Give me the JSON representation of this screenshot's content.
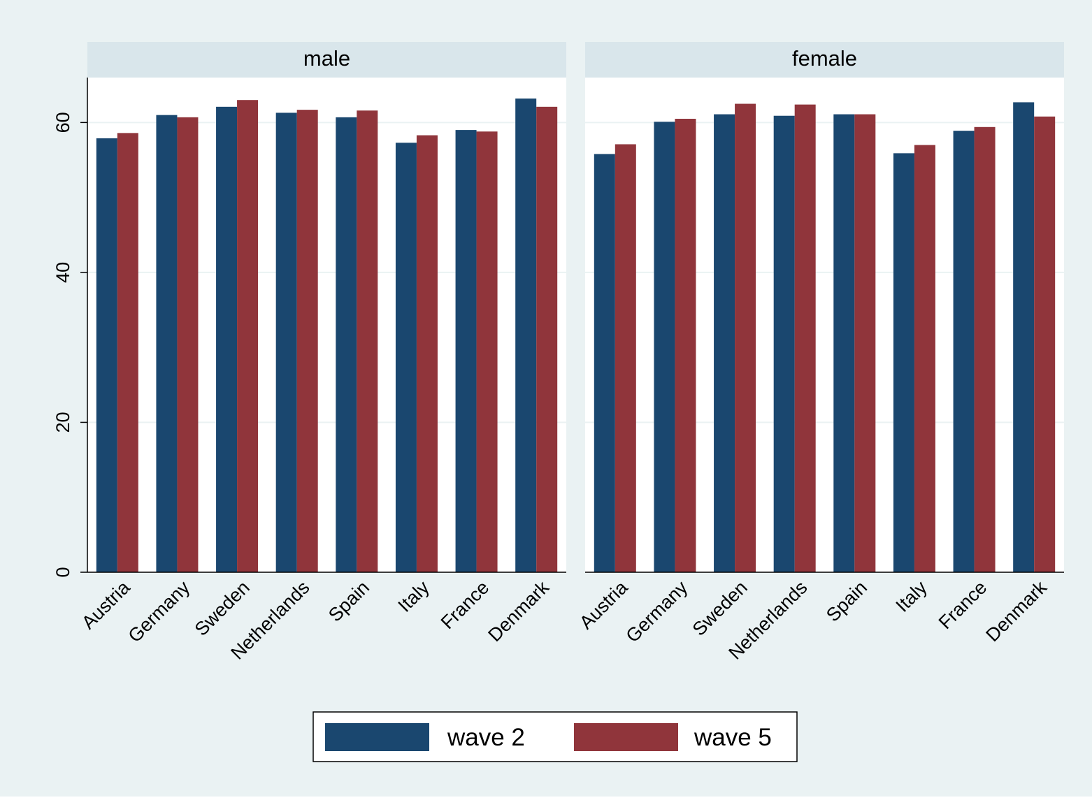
{
  "chart_data": {
    "type": "bar",
    "categories": [
      "Austria",
      "Germany",
      "Sweden",
      "Netherlands",
      "Spain",
      "Italy",
      "France",
      "Denmark"
    ],
    "ylim": [
      0,
      66
    ],
    "yticks": [
      0,
      20,
      40,
      60
    ],
    "grid": true,
    "legend_position": "bottom",
    "panels": [
      {
        "title": "male",
        "series": [
          {
            "name": "wave 2",
            "values": [
              57.9,
              61.0,
              62.1,
              61.3,
              60.7,
              57.3,
              59.0,
              63.2
            ]
          },
          {
            "name": "wave 5",
            "values": [
              58.6,
              60.7,
              63.0,
              61.7,
              61.6,
              58.3,
              58.8,
              62.1
            ]
          }
        ]
      },
      {
        "title": "female",
        "series": [
          {
            "name": "wave 2",
            "values": [
              55.8,
              60.1,
              61.1,
              60.9,
              61.1,
              55.9,
              58.9,
              62.7
            ]
          },
          {
            "name": "wave 5",
            "values": [
              57.1,
              60.5,
              62.5,
              62.4,
              61.1,
              57.0,
              59.4,
              60.8
            ]
          }
        ]
      }
    ],
    "colors": {
      "wave 2": "#1a476f",
      "wave 5": "#90353b",
      "outer_background": "#eaf2f3",
      "plot_background": "#ffffff",
      "strip_background": "#d9e6eb",
      "gridline": "#eaf2f3"
    }
  }
}
